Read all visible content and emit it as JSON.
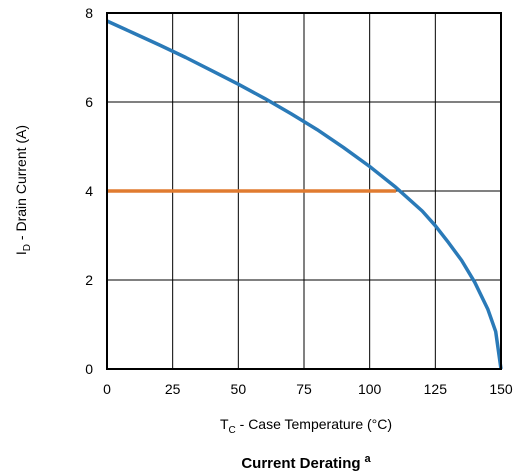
{
  "chart_data": {
    "type": "line",
    "title": "Current Derating",
    "title_superscript": "a",
    "xlabel": {
      "symbol": "T",
      "subscript": "C",
      "text": " - Case Temperature (°C)"
    },
    "ylabel": {
      "symbol": "I",
      "subscript": "D",
      "text": " - Drain Current (A)"
    },
    "xlim": [
      0,
      150
    ],
    "ylim": [
      0,
      8
    ],
    "x_ticks": [
      0,
      25,
      50,
      75,
      100,
      125,
      150
    ],
    "y_ticks": [
      0,
      2,
      4,
      6,
      8
    ],
    "grid": true,
    "legend": "none",
    "series": [
      {
        "color": "#2a7ab8",
        "x": [
          0,
          10,
          20,
          30,
          40,
          50,
          60,
          70,
          80,
          90,
          100,
          110,
          120,
          125,
          130,
          135,
          140,
          145,
          148,
          150
        ],
        "y": [
          7.82,
          7.55,
          7.28,
          7.0,
          6.7,
          6.4,
          6.08,
          5.74,
          5.38,
          4.98,
          4.55,
          4.08,
          3.55,
          3.22,
          2.84,
          2.44,
          1.95,
          1.34,
          0.84,
          0
        ]
      },
      {
        "color": "#e07b30",
        "x": [
          0,
          110
        ],
        "y": [
          4,
          4
        ]
      }
    ]
  }
}
